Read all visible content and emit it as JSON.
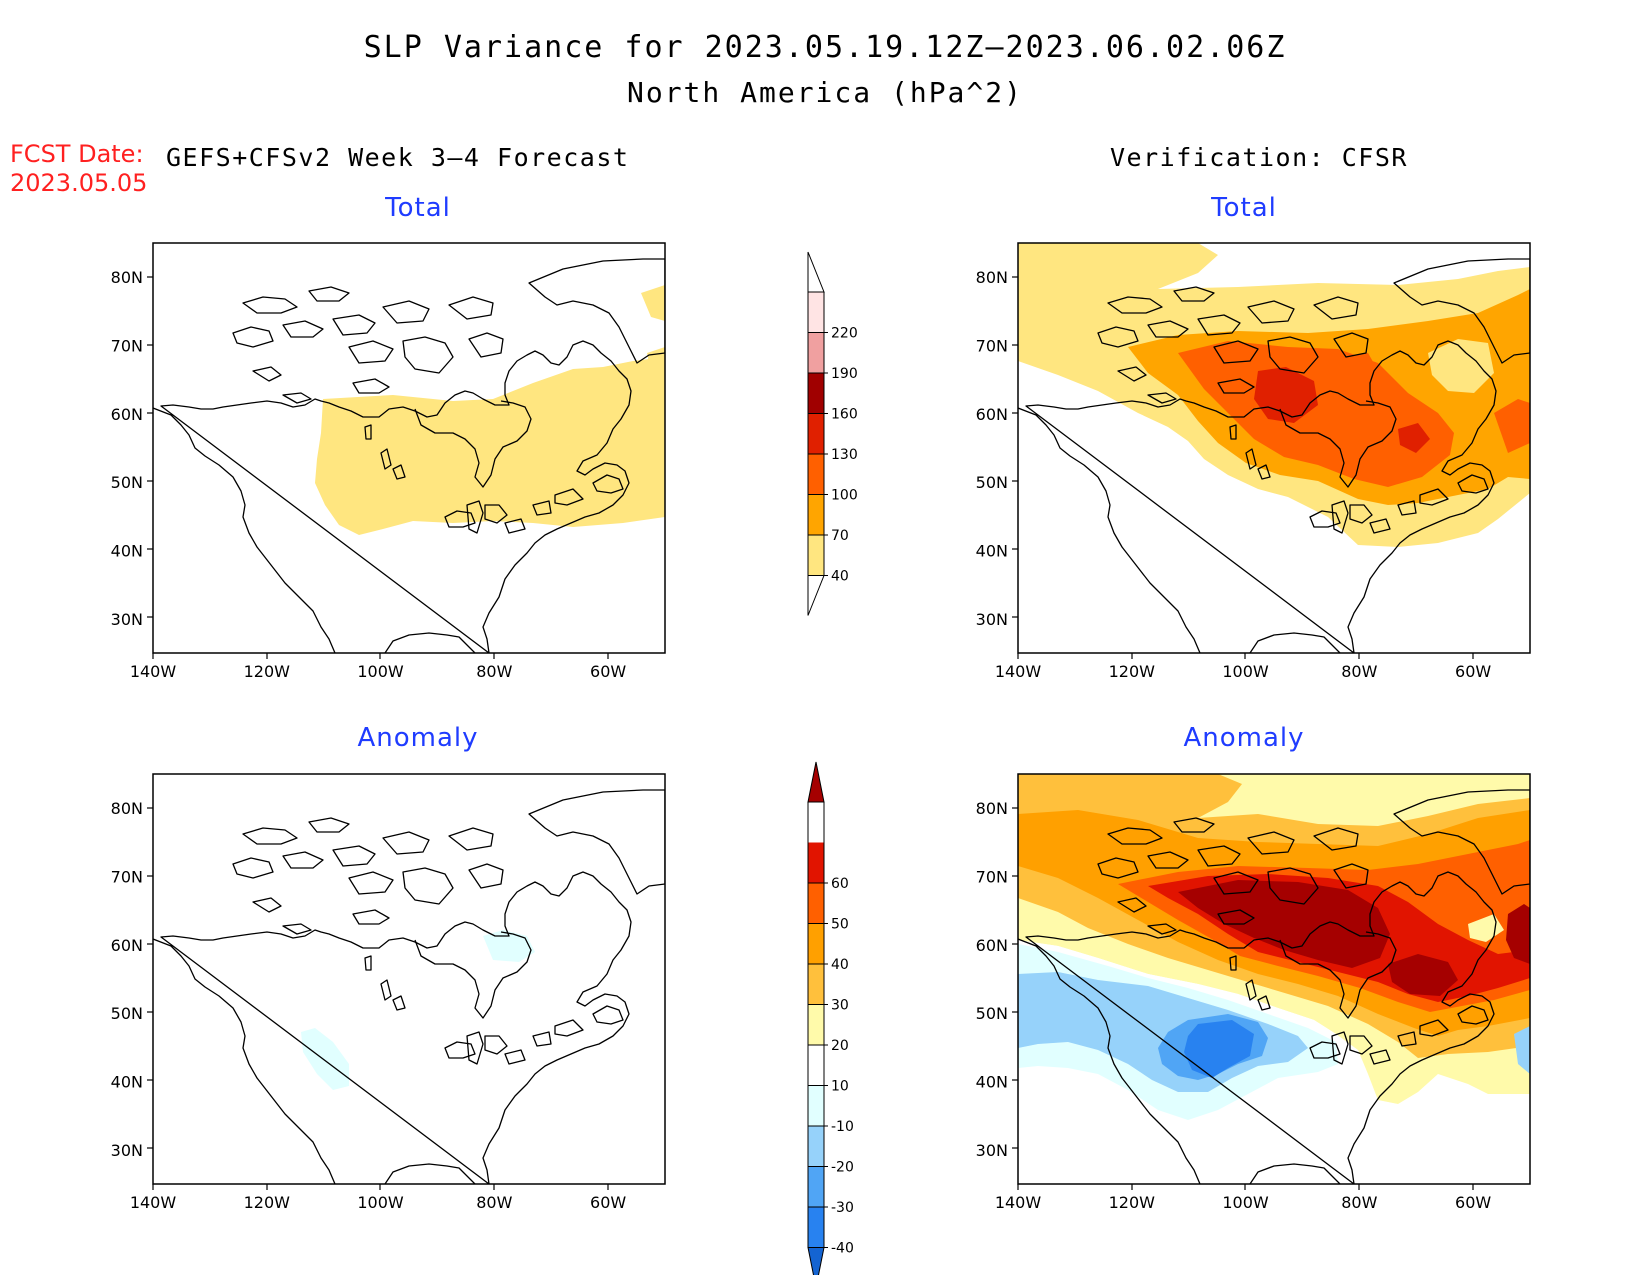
{
  "title": {
    "line1": "SLP Variance for 2023.05.19.12Z–2023.06.02.06Z",
    "line2": "North America (hPa^2)"
  },
  "forecast_date": {
    "label": "FCST Date:",
    "value": "2023.05.05"
  },
  "column_headers": {
    "left": "GEFS+CFSv2 Week 3–4 Forecast",
    "right": "Verification: CFSR"
  },
  "panels": [
    {
      "id": "fcst-total",
      "title": "Total"
    },
    {
      "id": "verif-total",
      "title": "Total"
    },
    {
      "id": "fcst-anomaly",
      "title": "Anomaly"
    },
    {
      "id": "verif-anomaly",
      "title": "Anomaly"
    }
  ],
  "axes": {
    "lon_labels": [
      "140W",
      "120W",
      "100W",
      "80W",
      "60W"
    ],
    "lon_values": [
      -140,
      -120,
      -100,
      -80,
      -60
    ],
    "lat_labels": [
      "80N",
      "70N",
      "60N",
      "50N",
      "40N",
      "30N"
    ],
    "lat_values": [
      80,
      70,
      60,
      50,
      40,
      30
    ],
    "lon_range": [
      -140,
      -50
    ],
    "lat_range": [
      25,
      85
    ]
  },
  "colorbar_total": {
    "levels": [
      "40",
      "70",
      "100",
      "130",
      "160",
      "190",
      "220"
    ],
    "colors": [
      "#ffe680",
      "#ffa500",
      "#ff6000",
      "#e02000",
      "#a00000",
      "#f0a0a0",
      "#ffe4e4"
    ]
  },
  "colorbar_anomaly": {
    "levels": [
      "-40",
      "-30",
      "-20",
      "-10",
      "10",
      "20",
      "30",
      "40",
      "50",
      "60"
    ],
    "colors": [
      "#1464d2",
      "#2882f0",
      "#50a5f5",
      "#96d2fa",
      "#e1ffff",
      "#ffffff",
      "#fffaaa",
      "#ffc03c",
      "#ffa000",
      "#ff6000",
      "#e11400",
      "#a50000"
    ]
  },
  "palette": {
    "outline": "#000000",
    "title_blue": "#1f3cff",
    "fcst_red": "#ff2020"
  }
}
